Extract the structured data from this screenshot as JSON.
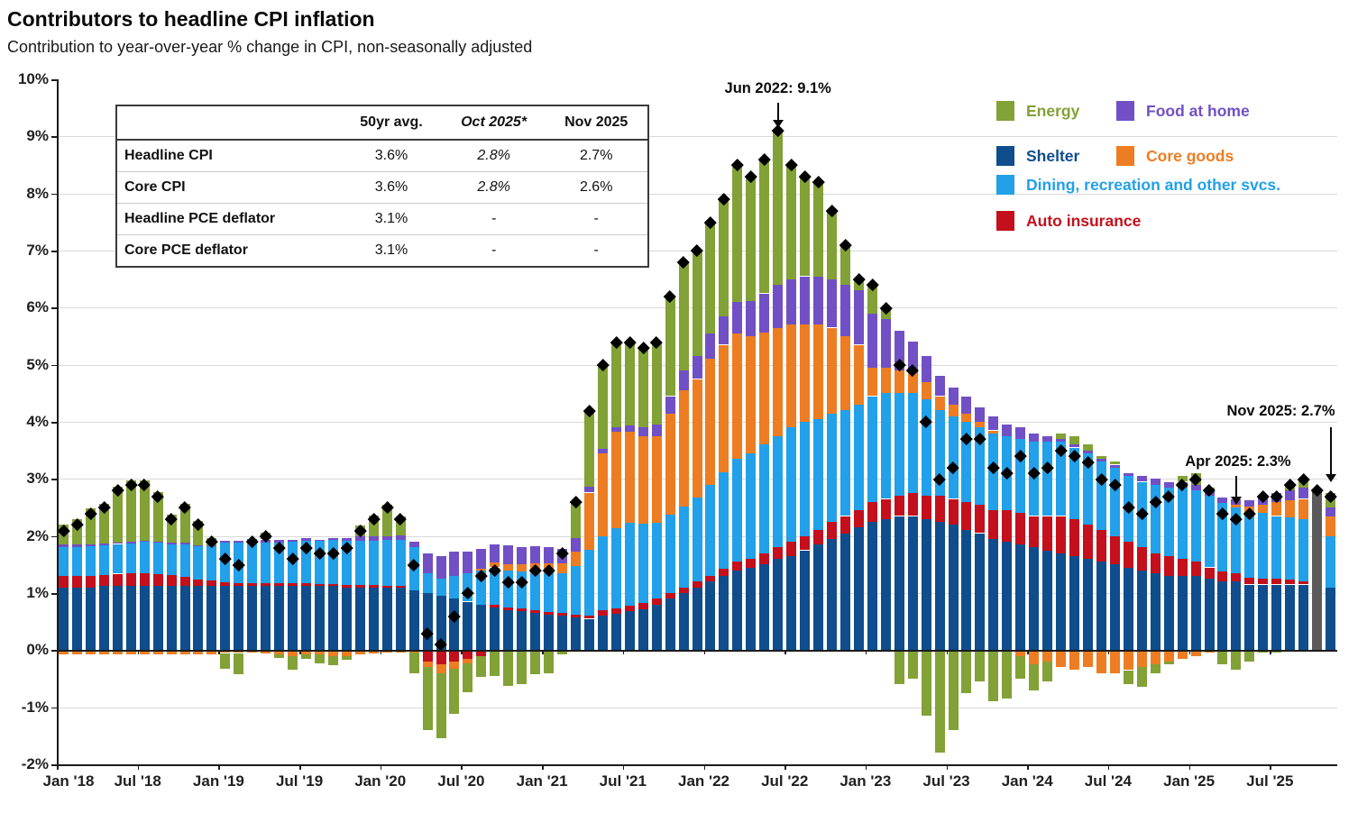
{
  "header": {
    "title": "Contributors to headline CPI inflation",
    "subtitle": "Contribution to year-over-year % change in CPI, non-seasonally adjusted"
  },
  "table": {
    "headers": [
      "",
      "50yr avg.",
      "Oct 2025*",
      "Nov 2025"
    ],
    "rows": [
      [
        "Headline CPI",
        "3.6%",
        "2.8%",
        "2.7%"
      ],
      [
        "Core CPI",
        "3.6%",
        "2.8%",
        "2.6%"
      ],
      [
        "Headline PCE deflator",
        "3.1%",
        "-",
        "-"
      ],
      [
        "Core PCE deflator",
        "3.1%",
        "-",
        "-"
      ]
    ]
  },
  "legend": [
    {
      "label": "Energy",
      "color": "#82A136"
    },
    {
      "label": "Food at home",
      "color": "#7150C5"
    },
    {
      "label": "Shelter",
      "color": "#0F4D8C"
    },
    {
      "label": "Core goods",
      "color": "#ED7D22"
    },
    {
      "label": "Dining, recreation and other svcs.",
      "color": "#22A0E9"
    },
    {
      "label": "Auto insurance",
      "color": "#C3101C"
    }
  ],
  "annotations": [
    {
      "id": "jun2022",
      "text": "Jun 2022: 9.1%",
      "month_index": 53,
      "value": 9.1
    },
    {
      "id": "apr2025",
      "text": "Apr 2025: 2.3%",
      "month_index": 87,
      "value": 2.3
    },
    {
      "id": "nov2025",
      "text": "Nov 2025: 2.7%",
      "month_index": 94,
      "value": 2.7
    }
  ],
  "chart_data": {
    "type": "bar",
    "stacked": true,
    "title": "Contributors to headline CPI inflation",
    "ylabel": "Contribution to y/y % change in CPI",
    "ylim": [
      -2,
      10
    ],
    "grid": true,
    "legend_position": "top-right",
    "marker_series": {
      "name": "Headline CPI y/y %",
      "style": "black-diamond"
    },
    "months": [
      "2018-01",
      "2018-02",
      "2018-03",
      "2018-04",
      "2018-05",
      "2018-06",
      "2018-07",
      "2018-08",
      "2018-09",
      "2018-10",
      "2018-11",
      "2018-12",
      "2019-01",
      "2019-02",
      "2019-03",
      "2019-04",
      "2019-05",
      "2019-06",
      "2019-07",
      "2019-08",
      "2019-09",
      "2019-10",
      "2019-11",
      "2019-12",
      "2020-01",
      "2020-02",
      "2020-03",
      "2020-04",
      "2020-05",
      "2020-06",
      "2020-07",
      "2020-08",
      "2020-09",
      "2020-10",
      "2020-11",
      "2020-12",
      "2021-01",
      "2021-02",
      "2021-03",
      "2021-04",
      "2021-05",
      "2021-06",
      "2021-07",
      "2021-08",
      "2021-09",
      "2021-10",
      "2021-11",
      "2021-12",
      "2022-01",
      "2022-02",
      "2022-03",
      "2022-04",
      "2022-05",
      "2022-06",
      "2022-07",
      "2022-08",
      "2022-09",
      "2022-10",
      "2022-11",
      "2022-12",
      "2023-01",
      "2023-02",
      "2023-03",
      "2023-04",
      "2023-05",
      "2023-06",
      "2023-07",
      "2023-08",
      "2023-09",
      "2023-10",
      "2023-11",
      "2023-12",
      "2024-01",
      "2024-02",
      "2024-03",
      "2024-04",
      "2024-05",
      "2024-06",
      "2024-07",
      "2024-08",
      "2024-09",
      "2024-10",
      "2024-11",
      "2024-12",
      "2025-01",
      "2025-02",
      "2025-03",
      "2025-04",
      "2025-05",
      "2025-06",
      "2025-07",
      "2025-08",
      "2025-09",
      "2025-10",
      "2025-11"
    ],
    "series": [
      {
        "name": "Shelter",
        "color": "#0F4D8C",
        "values": [
          1.1,
          1.1,
          1.1,
          1.12,
          1.12,
          1.13,
          1.13,
          1.13,
          1.13,
          1.13,
          1.12,
          1.12,
          1.12,
          1.12,
          1.12,
          1.12,
          1.12,
          1.12,
          1.12,
          1.12,
          1.12,
          1.1,
          1.1,
          1.1,
          1.1,
          1.1,
          1.05,
          1.0,
          0.95,
          0.9,
          0.85,
          0.8,
          0.75,
          0.7,
          0.68,
          0.65,
          0.62,
          0.6,
          0.58,
          0.55,
          0.6,
          0.63,
          0.68,
          0.72,
          0.8,
          0.9,
          1.0,
          1.1,
          1.2,
          1.3,
          1.4,
          1.45,
          1.5,
          1.6,
          1.65,
          1.75,
          1.85,
          1.95,
          2.05,
          2.15,
          2.25,
          2.3,
          2.35,
          2.35,
          2.3,
          2.25,
          2.2,
          2.1,
          2.05,
          1.95,
          1.9,
          1.85,
          1.8,
          1.75,
          1.7,
          1.65,
          1.6,
          1.55,
          1.5,
          1.45,
          1.4,
          1.35,
          1.3,
          1.3,
          1.3,
          1.25,
          1.2,
          1.2,
          1.15,
          1.15,
          1.15,
          1.15,
          1.15,
          0,
          1.1
        ]
      },
      {
        "name": "Auto insurance",
        "color": "#C3101C",
        "values": [
          0.2,
          0.2,
          0.2,
          0.2,
          0.22,
          0.22,
          0.22,
          0.2,
          0.18,
          0.15,
          0.12,
          0.1,
          0.07,
          0.06,
          0.06,
          0.05,
          0.05,
          0.05,
          0.05,
          0.04,
          0.04,
          0.04,
          0.04,
          0.04,
          0.03,
          0.03,
          0.0,
          -0.2,
          -0.25,
          -0.2,
          -0.15,
          -0.1,
          0.05,
          0.05,
          0.05,
          0.05,
          0.05,
          0.05,
          0.04,
          0.06,
          0.1,
          0.1,
          0.1,
          0.1,
          0.1,
          0.1,
          0.1,
          0.1,
          0.1,
          0.12,
          0.15,
          0.15,
          0.2,
          0.2,
          0.25,
          0.25,
          0.25,
          0.3,
          0.3,
          0.3,
          0.35,
          0.35,
          0.35,
          0.4,
          0.4,
          0.45,
          0.45,
          0.5,
          0.5,
          0.5,
          0.55,
          0.55,
          0.55,
          0.6,
          0.65,
          0.65,
          0.6,
          0.55,
          0.5,
          0.45,
          0.4,
          0.35,
          0.35,
          0.3,
          0.25,
          0.2,
          0.18,
          0.15,
          0.12,
          0.1,
          0.1,
          0.08,
          0.05,
          0,
          0.0
        ]
      },
      {
        "name": "Dining, recreation and other svcs.",
        "color": "#22A0E9",
        "values": [
          0.5,
          0.5,
          0.52,
          0.52,
          0.52,
          0.52,
          0.55,
          0.55,
          0.55,
          0.58,
          0.58,
          0.6,
          0.7,
          0.7,
          0.72,
          0.72,
          0.72,
          0.73,
          0.75,
          0.75,
          0.77,
          0.78,
          0.78,
          0.78,
          0.8,
          0.8,
          0.75,
          0.35,
          0.3,
          0.4,
          0.5,
          0.6,
          0.65,
          0.65,
          0.65,
          0.67,
          0.68,
          0.7,
          0.85,
          1.15,
          1.3,
          1.4,
          1.45,
          1.4,
          1.33,
          1.38,
          1.42,
          1.48,
          1.6,
          1.7,
          1.8,
          1.85,
          1.9,
          1.95,
          2.0,
          2.0,
          1.95,
          1.9,
          1.85,
          1.85,
          1.85,
          1.85,
          1.8,
          1.75,
          1.7,
          1.5,
          1.45,
          1.4,
          1.35,
          1.35,
          1.3,
          1.3,
          1.3,
          1.3,
          1.3,
          1.25,
          1.25,
          1.2,
          1.2,
          1.15,
          1.15,
          1.2,
          1.2,
          1.25,
          1.25,
          1.25,
          1.2,
          1.15,
          1.15,
          1.15,
          1.1,
          1.1,
          1.1,
          0,
          0.9
        ]
      },
      {
        "name": "Core goods",
        "color": "#ED7D22",
        "values": [
          -0.08,
          -0.08,
          -0.07,
          -0.07,
          -0.07,
          -0.07,
          -0.07,
          -0.07,
          -0.07,
          -0.07,
          -0.07,
          -0.07,
          -0.05,
          -0.05,
          -0.05,
          -0.06,
          -0.08,
          -0.1,
          -0.08,
          -0.08,
          -0.1,
          -0.1,
          -0.08,
          -0.06,
          -0.05,
          -0.04,
          -0.04,
          -0.1,
          -0.15,
          -0.12,
          -0.08,
          0.02,
          0.08,
          0.1,
          0.12,
          0.15,
          0.17,
          0.17,
          0.25,
          1.0,
          1.45,
          1.7,
          1.6,
          1.53,
          1.52,
          1.77,
          2.03,
          2.07,
          2.2,
          2.23,
          2.2,
          2.05,
          1.97,
          1.9,
          1.8,
          1.7,
          1.65,
          1.5,
          1.3,
          1.05,
          0.5,
          0.45,
          0.4,
          0.35,
          0.3,
          0.25,
          0.2,
          0.15,
          0.1,
          0.05,
          -0.02,
          -0.1,
          -0.25,
          -0.2,
          -0.3,
          -0.35,
          -0.3,
          -0.4,
          -0.4,
          -0.35,
          -0.3,
          -0.25,
          -0.2,
          -0.15,
          -0.1,
          -0.05,
          0.0,
          0.05,
          0.1,
          0.15,
          0.25,
          0.3,
          0.35,
          0,
          0.35
        ]
      },
      {
        "name": "Food at home",
        "color": "#7150C5",
        "values": [
          0.05,
          0.05,
          0.04,
          0.03,
          0.03,
          0.03,
          0.02,
          0.02,
          0.02,
          0.02,
          0.02,
          0.02,
          0.03,
          0.04,
          0.05,
          0.05,
          0.05,
          0.04,
          0.04,
          0.03,
          0.03,
          0.05,
          0.07,
          0.07,
          0.07,
          0.08,
          0.1,
          0.35,
          0.4,
          0.42,
          0.38,
          0.35,
          0.33,
          0.33,
          0.3,
          0.3,
          0.28,
          0.26,
          0.25,
          0.1,
          0.08,
          0.08,
          0.1,
          0.15,
          0.2,
          0.3,
          0.35,
          0.4,
          0.45,
          0.5,
          0.55,
          0.62,
          0.68,
          0.75,
          0.8,
          0.85,
          0.85,
          0.85,
          0.9,
          0.95,
          0.95,
          0.85,
          0.7,
          0.55,
          0.45,
          0.35,
          0.3,
          0.3,
          0.25,
          0.25,
          0.2,
          0.2,
          0.15,
          0.1,
          0.05,
          0.05,
          0.05,
          0.05,
          0.05,
          0.05,
          0.1,
          0.1,
          0.1,
          0.1,
          0.1,
          0.1,
          0.1,
          0.1,
          0.1,
          0.15,
          0.15,
          0.17,
          0.2,
          0,
          0.15
        ]
      },
      {
        "name": "Energy",
        "color": "#82A136",
        "values": [
          0.35,
          0.45,
          0.62,
          0.7,
          0.98,
          1.07,
          1.05,
          0.87,
          0.49,
          0.69,
          0.43,
          0.13,
          -0.27,
          -0.37,
          0.0,
          0.12,
          -0.06,
          -0.24,
          -0.08,
          -0.16,
          -0.16,
          -0.07,
          0.19,
          0.37,
          0.55,
          0.33,
          -0.36,
          -1.1,
          -1.15,
          -0.8,
          -0.5,
          -0.37,
          -0.46,
          -0.63,
          -0.6,
          -0.42,
          -0.4,
          -0.08,
          0.63,
          1.34,
          1.47,
          1.49,
          1.47,
          1.4,
          1.45,
          1.75,
          1.9,
          1.85,
          1.95,
          2.05,
          2.4,
          2.18,
          2.35,
          2.7,
          2.0,
          1.75,
          1.65,
          1.2,
          0.7,
          0.2,
          0.5,
          0.2,
          -0.6,
          -0.5,
          -1.15,
          -1.8,
          -1.4,
          -0.75,
          -0.55,
          -0.9,
          -0.83,
          -0.4,
          -0.45,
          -0.35,
          0.1,
          0.15,
          0.1,
          0.05,
          0.05,
          -0.25,
          -0.35,
          -0.15,
          -0.05,
          0.1,
          0.2,
          0.05,
          -0.25,
          -0.35,
          -0.2,
          -0.05,
          -0.05,
          0.1,
          0.15,
          0,
          0.25
        ]
      }
    ],
    "headline": [
      2.1,
      2.2,
      2.4,
      2.5,
      2.8,
      2.9,
      2.9,
      2.7,
      2.3,
      2.5,
      2.2,
      1.9,
      1.6,
      1.5,
      1.9,
      2.0,
      1.8,
      1.6,
      1.8,
      1.7,
      1.7,
      1.8,
      2.1,
      2.3,
      2.5,
      2.3,
      1.5,
      0.3,
      0.1,
      0.6,
      1.0,
      1.3,
      1.4,
      1.2,
      1.2,
      1.4,
      1.4,
      1.7,
      2.6,
      4.2,
      5.0,
      5.4,
      5.4,
      5.3,
      5.4,
      6.2,
      6.8,
      7.0,
      7.5,
      7.9,
      8.5,
      8.3,
      8.6,
      9.1,
      8.5,
      8.3,
      8.2,
      7.7,
      7.1,
      6.5,
      6.4,
      6.0,
      5.0,
      4.9,
      4.0,
      3.0,
      3.2,
      3.7,
      3.7,
      3.2,
      3.1,
      3.4,
      3.1,
      3.2,
      3.5,
      3.4,
      3.3,
      3.0,
      2.9,
      2.5,
      2.4,
      2.6,
      2.7,
      2.9,
      3.0,
      2.8,
      2.4,
      2.3,
      2.4,
      2.7,
      2.7,
      2.9,
      3.0,
      2.8,
      2.7
    ],
    "estimate_bar": {
      "month": "2025-10",
      "value": 2.8,
      "color": "#5B5B5B",
      "note": "Oct 2025* shown as single estimated bar"
    },
    "yticks": [
      {
        "label": "10%",
        "value": 10
      },
      {
        "label": "9%",
        "value": 9
      },
      {
        "label": "8%",
        "value": 8
      },
      {
        "label": "7%",
        "value": 7
      },
      {
        "label": "6%",
        "value": 6
      },
      {
        "label": "5%",
        "value": 5
      },
      {
        "label": "4%",
        "value": 4
      },
      {
        "label": "3%",
        "value": 3
      },
      {
        "label": "2%",
        "value": 2
      },
      {
        "label": "1%",
        "value": 1
      },
      {
        "label": "0%",
        "value": 0
      },
      {
        "label": "-1%",
        "value": -1
      },
      {
        "label": "-2%",
        "value": -2
      }
    ],
    "xticks": [
      {
        "label": "Jan '18",
        "index": 0
      },
      {
        "label": "Jul '18",
        "index": 6
      },
      {
        "label": "Jan '19",
        "index": 12
      },
      {
        "label": "Jul '19",
        "index": 18
      },
      {
        "label": "Jan '20",
        "index": 24
      },
      {
        "label": "Jul '20",
        "index": 30
      },
      {
        "label": "Jan '21",
        "index": 36
      },
      {
        "label": "Jul '21",
        "index": 42
      },
      {
        "label": "Jan '22",
        "index": 48
      },
      {
        "label": "Jul '22",
        "index": 54
      },
      {
        "label": "Jan '23",
        "index": 60
      },
      {
        "label": "Jul '23",
        "index": 66
      },
      {
        "label": "Jan '24",
        "index": 72
      },
      {
        "label": "Jul '24",
        "index": 78
      },
      {
        "label": "Jan '25",
        "index": 84
      },
      {
        "label": "Jul '25",
        "index": 90
      }
    ]
  }
}
